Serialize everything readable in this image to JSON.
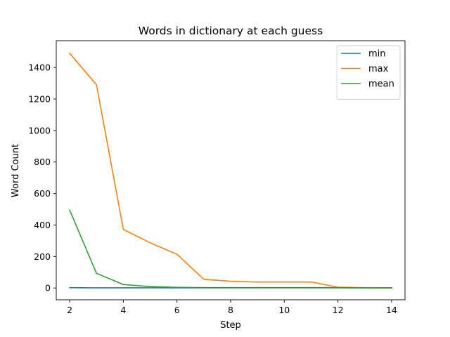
{
  "chart_data": {
    "type": "line",
    "title": "Words in dictionary at each guess",
    "xlabel": "Step",
    "ylabel": "Word Count",
    "xlim": [
      1.5,
      14.5
    ],
    "ylim": [
      -75,
      1570
    ],
    "xticks": [
      2,
      4,
      6,
      8,
      10,
      12,
      14
    ],
    "yticks": [
      0,
      200,
      400,
      600,
      800,
      1000,
      1200,
      1400
    ],
    "grid": false,
    "legend_position": "top-right",
    "x": [
      2,
      3,
      4,
      5,
      6,
      7,
      8,
      9,
      10,
      11,
      12,
      13,
      14
    ],
    "series": [
      {
        "name": "min",
        "color": "#1f77b4",
        "values": [
          2,
          1,
          1,
          1,
          1,
          1,
          1,
          1,
          1,
          1,
          1,
          1,
          1
        ]
      },
      {
        "name": "max",
        "color": "#ff7f0e",
        "values": [
          1490,
          1290,
          372,
          287,
          214,
          55,
          43,
          38,
          38,
          38,
          5,
          2,
          1
        ]
      },
      {
        "name": "mean",
        "color": "#2ca02c",
        "values": [
          495,
          93,
          22,
          9,
          4,
          2,
          2,
          2,
          2,
          2,
          2,
          1,
          1
        ]
      }
    ]
  }
}
